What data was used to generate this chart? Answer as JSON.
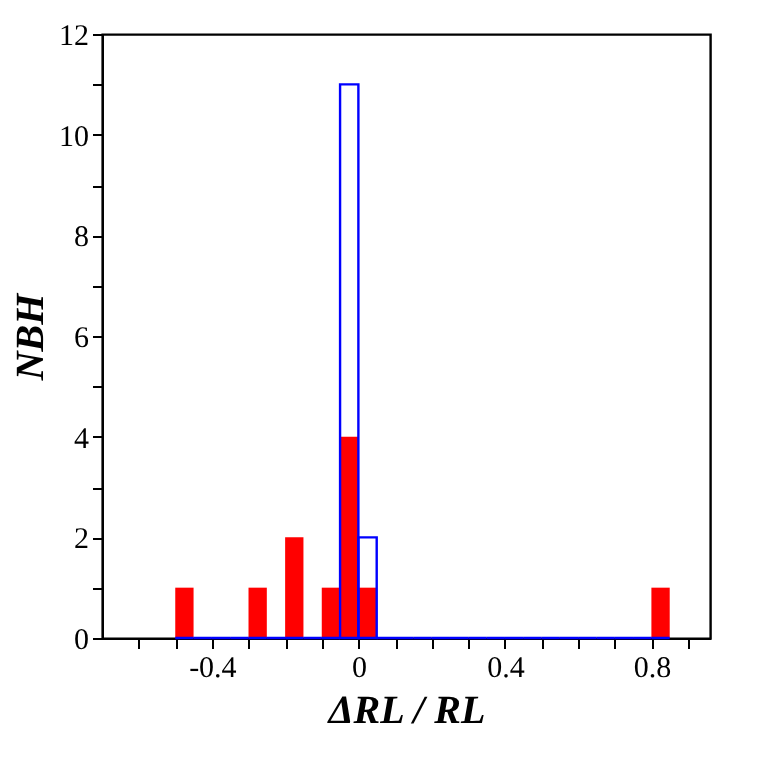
{
  "chart_data": {
    "type": "histogram",
    "xlabel": "ΔRL / RL",
    "ylabel": "NBH",
    "bins": [
      -0.5,
      -0.45,
      -0.4,
      -0.35,
      -0.3,
      -0.25,
      -0.2,
      -0.15,
      -0.1,
      -0.05,
      0,
      0.05,
      0.1,
      0.15,
      0.2,
      0.25,
      0.3,
      0.35,
      0.4,
      0.45,
      0.5,
      0.55,
      0.6,
      0.65,
      0.7,
      0.75,
      0.8,
      0.85
    ],
    "series": [
      {
        "color": "#ff0000",
        "values": [
          1,
          0,
          0,
          0,
          1,
          0,
          2,
          0,
          1,
          4,
          1,
          0,
          0,
          0,
          0,
          0,
          0,
          0,
          0,
          0,
          0,
          0,
          0,
          0,
          0,
          0,
          1
        ]
      },
      {
        "color": "#0000ff",
        "values": [
          0,
          0,
          0,
          0,
          0,
          0,
          0,
          0,
          0,
          11,
          2,
          0,
          0,
          0,
          0,
          0,
          0,
          0,
          0,
          0,
          0,
          0,
          0,
          0,
          0,
          0,
          0
        ]
      }
    ],
    "xlim": [
      -0.7,
      0.96
    ],
    "ylim": [
      0,
      12
    ],
    "xticks": [
      {
        "value": -0.6,
        "label": null
      },
      {
        "value": -0.5,
        "label": null
      },
      -0.4,
      {
        "value": -0.3,
        "label": null
      },
      {
        "value": -0.2,
        "label": null
      },
      {
        "value": -0.1,
        "label": null
      },
      0,
      {
        "value": 0.1,
        "label": null
      },
      {
        "value": 0.2,
        "label": null
      },
      {
        "value": 0.3,
        "label": null
      },
      0.4,
      {
        "value": 0.5,
        "label": null
      },
      {
        "value": 0.6,
        "label": null
      },
      {
        "value": 0.7,
        "label": null
      },
      0.8,
      {
        "value": 0.9,
        "label": null
      }
    ],
    "yticks": [
      0,
      {
        "value": 1,
        "label": null
      },
      2,
      {
        "value": 3,
        "label": null
      },
      4,
      {
        "value": 5,
        "label": null
      },
      6,
      {
        "value": 7,
        "label": null
      },
      8,
      {
        "value": 9,
        "label": null
      },
      10,
      {
        "value": 11,
        "label": null
      },
      12
    ],
    "grid": false
  }
}
